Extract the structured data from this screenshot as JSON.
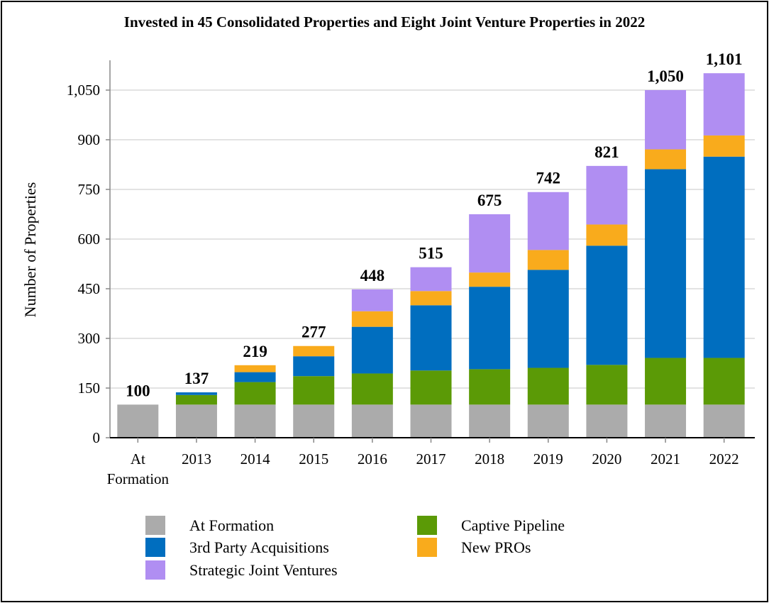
{
  "chart_data": {
    "type": "bar",
    "stacked": true,
    "title": "Invested in 45 Consolidated Properties and Eight Joint Venture Properties in 2022",
    "xlabel": "",
    "ylabel": "Number of Properties",
    "ylim": [
      0,
      1150
    ],
    "yticks": [
      0,
      150,
      300,
      450,
      600,
      750,
      900,
      1050
    ],
    "ytick_labels": [
      "0",
      "150",
      "300",
      "450",
      "600",
      "750",
      "900",
      "1,050"
    ],
    "grid": true,
    "legend_position": "bottom",
    "categories": [
      "At Formation",
      "2013",
      "2014",
      "2015",
      "2016",
      "2017",
      "2018",
      "2019",
      "2020",
      "2021",
      "2022"
    ],
    "totals": [
      "100",
      "137",
      "219",
      "277",
      "448",
      "515",
      "675",
      "742",
      "821",
      "1,050",
      "1,101"
    ],
    "series": [
      {
        "name": "At Formation",
        "color": "#ababab",
        "values": [
          100,
          100,
          100,
          100,
          100,
          100,
          100,
          100,
          100,
          100,
          100
        ]
      },
      {
        "name": "Captive Pipeline",
        "color": "#5b9a06",
        "values": [
          0,
          29,
          68,
          86,
          94,
          103,
          107,
          111,
          120,
          141,
          141
        ]
      },
      {
        "name": "3rd Party Acquisitions",
        "color": "#006ebf",
        "values": [
          0,
          8,
          30,
          60,
          141,
          197,
          249,
          296,
          360,
          570,
          608
        ]
      },
      {
        "name": "New PROs",
        "color": "#f9ab1c",
        "values": [
          0,
          0,
          21,
          31,
          47,
          43,
          43,
          60,
          64,
          60,
          64
        ]
      },
      {
        "name": "Strategic Joint Ventures",
        "color": "#b08ef2",
        "values": [
          0,
          0,
          0,
          0,
          66,
          72,
          176,
          175,
          177,
          179,
          188
        ]
      }
    ]
  }
}
